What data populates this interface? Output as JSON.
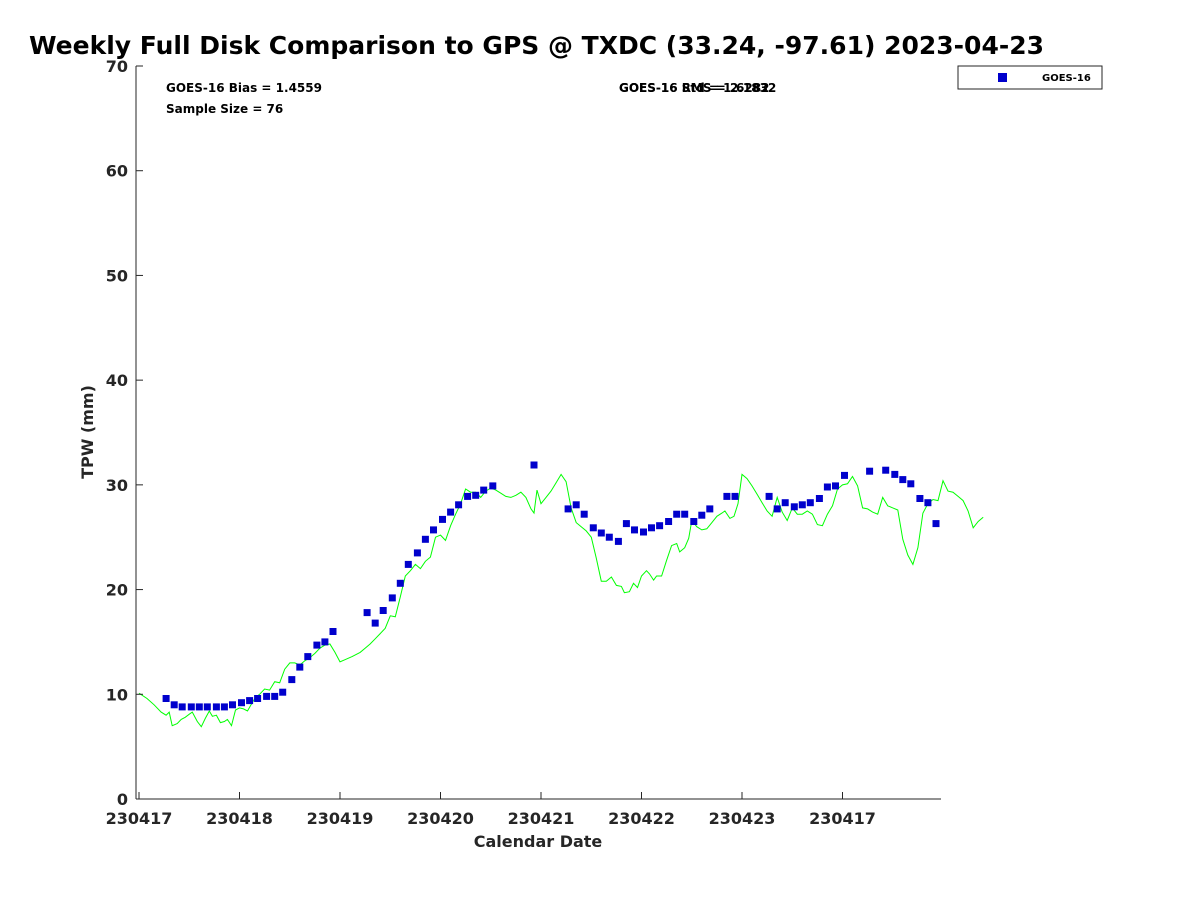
{
  "chart_data": {
    "type": "scatter",
    "title": "Weekly Full Disk Comparison to GPS @ TXDC (33.24, -97.61) 2023-04-23",
    "xlabel": "Calendar Date",
    "ylabel": "TPW (mm)",
    "xlim": [
      0,
      8
    ],
    "ylim": [
      0,
      70
    ],
    "x_tick_values": [
      0,
      1,
      2,
      3,
      4,
      5,
      6,
      7
    ],
    "x_tick_labels": [
      "230417",
      "230418",
      "230419",
      "230420",
      "230421",
      "230422",
      "230423",
      "230417"
    ],
    "y_ticks": [
      0,
      10,
      20,
      30,
      40,
      50,
      60,
      70
    ],
    "grid": false,
    "legend_position": "top-right",
    "annotations": {
      "bias": "GOES-16 Bias = 1.4559",
      "sample_size": "Sample Size = 76",
      "std_rms_overlap_a": "GOES-16 Std = 1.6282",
      "std_rms_overlap_b": "GOES-16 RMS = 2.1832"
    },
    "series": [
      {
        "name": "GOES-16",
        "kind": "scatter",
        "marker": "square",
        "color": "#0000cc",
        "points": [
          [
            0.27,
            9.6
          ],
          [
            0.35,
            9.0
          ],
          [
            0.43,
            8.8
          ],
          [
            0.52,
            8.8
          ],
          [
            0.6,
            8.8
          ],
          [
            0.68,
            8.8
          ],
          [
            0.77,
            8.8
          ],
          [
            0.85,
            8.8
          ],
          [
            0.93,
            9.0
          ],
          [
            1.02,
            9.2
          ],
          [
            1.1,
            9.4
          ],
          [
            1.18,
            9.6
          ],
          [
            1.27,
            9.8
          ],
          [
            1.35,
            9.8
          ],
          [
            1.43,
            10.2
          ],
          [
            1.52,
            11.4
          ],
          [
            1.6,
            12.6
          ],
          [
            1.68,
            13.6
          ],
          [
            1.77,
            14.7
          ],
          [
            1.85,
            15.0
          ],
          [
            1.93,
            16.0
          ],
          [
            2.27,
            17.8
          ],
          [
            2.35,
            16.8
          ],
          [
            2.43,
            18.0
          ],
          [
            2.52,
            19.2
          ],
          [
            2.6,
            20.6
          ],
          [
            2.68,
            22.4
          ],
          [
            2.77,
            23.5
          ],
          [
            2.85,
            24.8
          ],
          [
            2.93,
            25.7
          ],
          [
            3.02,
            26.7
          ],
          [
            3.1,
            27.4
          ],
          [
            3.18,
            28.1
          ],
          [
            3.27,
            28.9
          ],
          [
            3.35,
            29.0
          ],
          [
            3.43,
            29.5
          ],
          [
            3.52,
            29.9
          ],
          [
            3.93,
            31.9
          ],
          [
            4.27,
            27.7
          ],
          [
            4.35,
            28.1
          ],
          [
            4.43,
            27.2
          ],
          [
            4.52,
            25.9
          ],
          [
            4.6,
            25.4
          ],
          [
            4.68,
            25.0
          ],
          [
            4.77,
            24.6
          ],
          [
            4.85,
            26.3
          ],
          [
            4.93,
            25.7
          ],
          [
            5.02,
            25.5
          ],
          [
            5.1,
            25.9
          ],
          [
            5.18,
            26.1
          ],
          [
            5.27,
            26.5
          ],
          [
            5.35,
            27.2
          ],
          [
            5.43,
            27.2
          ],
          [
            5.52,
            26.5
          ],
          [
            5.6,
            27.1
          ],
          [
            5.68,
            27.7
          ],
          [
            5.85,
            28.9
          ],
          [
            5.93,
            28.9
          ],
          [
            6.27,
            28.9
          ],
          [
            6.35,
            27.7
          ],
          [
            6.43,
            28.3
          ],
          [
            6.52,
            27.9
          ],
          [
            6.6,
            28.1
          ],
          [
            6.68,
            28.3
          ],
          [
            6.77,
            28.7
          ],
          [
            6.85,
            29.8
          ],
          [
            6.93,
            29.9
          ],
          [
            7.02,
            30.9
          ],
          [
            7.27,
            31.3
          ],
          [
            7.43,
            31.4
          ],
          [
            7.52,
            31.0
          ],
          [
            7.6,
            30.5
          ],
          [
            7.68,
            30.1
          ],
          [
            7.77,
            28.7
          ],
          [
            7.85,
            28.3
          ],
          [
            7.93,
            26.3
          ]
        ]
      },
      {
        "name": "",
        "kind": "line",
        "color": "#00ff00",
        "points": [
          [
            0.0,
            10.1
          ],
          [
            0.08,
            9.6
          ],
          [
            0.15,
            9.0
          ],
          [
            0.22,
            8.3
          ],
          [
            0.27,
            8.0
          ],
          [
            0.3,
            8.3
          ],
          [
            0.33,
            7.0
          ],
          [
            0.38,
            7.2
          ],
          [
            0.42,
            7.6
          ],
          [
            0.46,
            7.8
          ],
          [
            0.5,
            8.1
          ],
          [
            0.53,
            8.3
          ],
          [
            0.58,
            7.4
          ],
          [
            0.62,
            6.9
          ],
          [
            0.66,
            7.7
          ],
          [
            0.7,
            8.4
          ],
          [
            0.73,
            7.9
          ],
          [
            0.77,
            8.0
          ],
          [
            0.81,
            7.3
          ],
          [
            0.85,
            7.4
          ],
          [
            0.88,
            7.6
          ],
          [
            0.92,
            7.0
          ],
          [
            0.96,
            8.5
          ],
          [
            1.0,
            8.7
          ],
          [
            1.04,
            8.6
          ],
          [
            1.08,
            8.4
          ],
          [
            1.12,
            9.1
          ],
          [
            1.16,
            9.7
          ],
          [
            1.2,
            10.0
          ],
          [
            1.25,
            10.5
          ],
          [
            1.3,
            10.4
          ],
          [
            1.35,
            11.2
          ],
          [
            1.4,
            11.1
          ],
          [
            1.45,
            12.4
          ],
          [
            1.5,
            13.0
          ],
          [
            1.55,
            13.0
          ],
          [
            1.6,
            12.8
          ],
          [
            1.65,
            13.2
          ],
          [
            1.7,
            13.5
          ],
          [
            1.75,
            13.9
          ],
          [
            1.8,
            14.4
          ],
          [
            1.85,
            14.7
          ],
          [
            1.9,
            14.8
          ],
          [
            1.95,
            14.0
          ],
          [
            2.0,
            13.1
          ],
          [
            2.05,
            13.3
          ],
          [
            2.12,
            13.6
          ],
          [
            2.2,
            14.0
          ],
          [
            2.25,
            14.4
          ],
          [
            2.3,
            14.8
          ],
          [
            2.35,
            15.3
          ],
          [
            2.4,
            15.8
          ],
          [
            2.45,
            16.3
          ],
          [
            2.5,
            17.5
          ],
          [
            2.55,
            17.4
          ],
          [
            2.6,
            19.3
          ],
          [
            2.65,
            21.3
          ],
          [
            2.7,
            21.8
          ],
          [
            2.75,
            22.4
          ],
          [
            2.8,
            22.0
          ],
          [
            2.85,
            22.7
          ],
          [
            2.9,
            23.1
          ],
          [
            2.95,
            25.0
          ],
          [
            3.0,
            25.2
          ],
          [
            3.05,
            24.7
          ],
          [
            3.1,
            26.1
          ],
          [
            3.15,
            27.2
          ],
          [
            3.2,
            28.2
          ],
          [
            3.25,
            29.6
          ],
          [
            3.3,
            29.3
          ],
          [
            3.35,
            29.3
          ],
          [
            3.4,
            28.8
          ],
          [
            3.45,
            29.4
          ],
          [
            3.5,
            29.7
          ],
          [
            3.55,
            29.5
          ],
          [
            3.6,
            29.2
          ],
          [
            3.65,
            28.9
          ],
          [
            3.7,
            28.8
          ],
          [
            3.75,
            29.0
          ],
          [
            3.8,
            29.3
          ],
          [
            3.85,
            28.8
          ],
          [
            3.9,
            27.7
          ],
          [
            3.93,
            27.3
          ],
          [
            3.96,
            29.5
          ],
          [
            4.0,
            28.2
          ],
          [
            4.05,
            28.8
          ],
          [
            4.1,
            29.4
          ],
          [
            4.15,
            30.2
          ],
          [
            4.2,
            31.0
          ],
          [
            4.25,
            30.3
          ],
          [
            4.3,
            27.8
          ],
          [
            4.35,
            26.4
          ],
          [
            4.4,
            26.0
          ],
          [
            4.45,
            25.6
          ],
          [
            4.5,
            25.0
          ],
          [
            4.55,
            23.0
          ],
          [
            4.6,
            20.8
          ],
          [
            4.65,
            20.8
          ],
          [
            4.7,
            21.2
          ],
          [
            4.75,
            20.4
          ],
          [
            4.8,
            20.3
          ],
          [
            4.83,
            19.7
          ],
          [
            4.88,
            19.8
          ],
          [
            4.92,
            20.6
          ],
          [
            4.96,
            20.2
          ],
          [
            5.0,
            21.3
          ],
          [
            5.05,
            21.8
          ],
          [
            5.08,
            21.5
          ],
          [
            5.12,
            20.9
          ],
          [
            5.15,
            21.3
          ],
          [
            5.2,
            21.3
          ],
          [
            5.25,
            22.8
          ],
          [
            5.3,
            24.2
          ],
          [
            5.35,
            24.4
          ],
          [
            5.38,
            23.6
          ],
          [
            5.43,
            24.0
          ],
          [
            5.47,
            24.9
          ],
          [
            5.5,
            26.6
          ],
          [
            5.55,
            26.0
          ],
          [
            5.6,
            25.7
          ],
          [
            5.65,
            25.8
          ],
          [
            5.7,
            26.4
          ],
          [
            5.75,
            27.0
          ],
          [
            5.8,
            27.3
          ],
          [
            5.83,
            27.5
          ],
          [
            5.88,
            26.8
          ],
          [
            5.92,
            27.0
          ],
          [
            5.96,
            28.2
          ],
          [
            6.0,
            31.0
          ],
          [
            6.05,
            30.6
          ],
          [
            6.1,
            29.9
          ],
          [
            6.15,
            29.1
          ],
          [
            6.2,
            28.3
          ],
          [
            6.25,
            27.5
          ],
          [
            6.3,
            27.0
          ],
          [
            6.35,
            28.8
          ],
          [
            6.4,
            27.4
          ],
          [
            6.45,
            26.6
          ],
          [
            6.5,
            27.8
          ],
          [
            6.55,
            27.2
          ],
          [
            6.6,
            27.2
          ],
          [
            6.65,
            27.5
          ],
          [
            6.7,
            27.2
          ],
          [
            6.75,
            26.2
          ],
          [
            6.8,
            26.1
          ],
          [
            6.85,
            27.2
          ],
          [
            6.9,
            28.0
          ],
          [
            6.95,
            29.6
          ],
          [
            7.0,
            30.0
          ],
          [
            7.05,
            30.1
          ],
          [
            7.1,
            30.8
          ],
          [
            7.15,
            29.9
          ],
          [
            7.2,
            27.8
          ],
          [
            7.25,
            27.7
          ],
          [
            7.3,
            27.4
          ],
          [
            7.35,
            27.2
          ],
          [
            7.4,
            28.8
          ],
          [
            7.45,
            28.0
          ],
          [
            7.5,
            27.8
          ],
          [
            7.55,
            27.6
          ],
          [
            7.6,
            24.8
          ],
          [
            7.65,
            23.3
          ],
          [
            7.7,
            22.4
          ],
          [
            7.75,
            24.0
          ],
          [
            7.8,
            27.3
          ],
          [
            7.85,
            28.2
          ],
          [
            7.9,
            28.6
          ],
          [
            7.95,
            28.5
          ],
          [
            8.0,
            30.4
          ],
          [
            8.05,
            29.4
          ],
          [
            8.1,
            29.3
          ],
          [
            8.15,
            28.9
          ],
          [
            8.2,
            28.5
          ],
          [
            8.25,
            27.5
          ],
          [
            8.3,
            25.9
          ],
          [
            8.35,
            26.5
          ],
          [
            8.4,
            26.9
          ]
        ]
      }
    ]
  }
}
